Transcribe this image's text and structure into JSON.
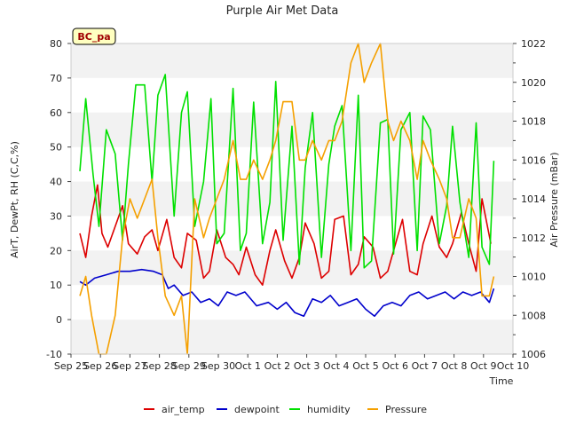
{
  "chart_data": {
    "type": "line",
    "title": "Purple Air Met Data",
    "badge": "BC_pa",
    "xlabel": "Time",
    "ylabel_left": "AirT, DewPt, RH (C,C,%)",
    "ylabel_right": "Air Pressure (mBar)",
    "x_ticks": [
      "Sep 25",
      "Sep 26",
      "Sep 27",
      "Sep 28",
      "Sep 29",
      "Sep 30",
      "Oct 1",
      "Oct 2",
      "Oct 3",
      "Oct 4",
      "Oct 5",
      "Oct 6",
      "Oct 7",
      "Oct 8",
      "Oct 9",
      "Oct 10"
    ],
    "xlim_days": [
      0,
      15
    ],
    "ylim_left": [
      -10,
      80
    ],
    "y_ticks_left": [
      -10,
      0,
      10,
      20,
      30,
      40,
      50,
      60,
      70,
      80
    ],
    "ylim_right": [
      1006,
      1022
    ],
    "y_ticks_right": [
      1006,
      1008,
      1010,
      1012,
      1014,
      1016,
      1018,
      1020,
      1022
    ],
    "grid": "horizontal bands",
    "legend_position": "bottom",
    "series": [
      {
        "name": "air_temp",
        "color": "#dd0000",
        "axis": "left",
        "x": [
          0.3,
          0.5,
          0.7,
          0.9,
          1.05,
          1.25,
          1.5,
          1.75,
          1.95,
          2.25,
          2.5,
          2.75,
          2.95,
          3.25,
          3.5,
          3.75,
          3.95,
          4.25,
          4.5,
          4.7,
          4.95,
          5.25,
          5.5,
          5.7,
          5.95,
          6.25,
          6.5,
          6.75,
          6.95,
          7.25,
          7.5,
          7.75,
          7.95,
          8.25,
          8.5,
          8.75,
          8.95,
          9.25,
          9.5,
          9.75,
          9.95,
          10.25,
          10.5,
          10.75,
          10.95,
          11.25,
          11.5,
          11.75,
          11.95,
          12.25,
          12.5,
          12.75,
          12.95,
          13.25,
          13.5,
          13.75,
          13.95,
          14.25
        ],
        "y": [
          25,
          18,
          30,
          39,
          25,
          21,
          27,
          33,
          22,
          19,
          24,
          26,
          20,
          29,
          18,
          15,
          25,
          23,
          12,
          14,
          26,
          18,
          16,
          13,
          21,
          13,
          10,
          20,
          26,
          17,
          12,
          18,
          28,
          22,
          12,
          14,
          29,
          30,
          13,
          16,
          24,
          21,
          12,
          14,
          20,
          29,
          14,
          13,
          22,
          30,
          21,
          18,
          22,
          31,
          22,
          14,
          35,
          22
        ]
      },
      {
        "name": "dewpoint",
        "color": "#0000cc",
        "axis": "left",
        "x": [
          0.3,
          0.5,
          0.8,
          1.2,
          1.6,
          2.0,
          2.4,
          2.8,
          3.1,
          3.3,
          3.5,
          3.8,
          4.1,
          4.4,
          4.7,
          5.0,
          5.3,
          5.6,
          5.9,
          6.3,
          6.7,
          7.0,
          7.3,
          7.6,
          7.9,
          8.2,
          8.5,
          8.8,
          9.1,
          9.4,
          9.7,
          10.0,
          10.3,
          10.6,
          10.9,
          11.2,
          11.5,
          11.8,
          12.1,
          12.4,
          12.7,
          13.0,
          13.3,
          13.6,
          13.9,
          14.2,
          14.35
        ],
        "y": [
          11,
          10,
          12,
          13,
          14,
          14,
          14.5,
          14,
          13,
          9,
          10,
          7,
          8,
          5,
          6,
          4,
          8,
          7,
          8,
          4,
          5,
          3,
          5,
          2,
          1,
          6,
          5,
          7,
          4,
          5,
          6,
          3,
          1,
          4,
          5,
          4,
          7,
          8,
          6,
          7,
          8,
          6,
          8,
          7,
          8,
          5,
          9
        ]
      },
      {
        "name": "humidity",
        "color": "#00e000",
        "axis": "left",
        "x": [
          0.3,
          0.5,
          0.75,
          0.95,
          1.2,
          1.5,
          1.75,
          1.95,
          2.2,
          2.5,
          2.75,
          2.95,
          3.2,
          3.5,
          3.75,
          3.95,
          4.2,
          4.5,
          4.75,
          4.95,
          5.2,
          5.5,
          5.75,
          5.95,
          6.2,
          6.5,
          6.75,
          6.95,
          7.2,
          7.5,
          7.75,
          7.95,
          8.2,
          8.5,
          8.75,
          8.95,
          9.2,
          9.5,
          9.75,
          9.95,
          10.2,
          10.5,
          10.75,
          10.95,
          11.2,
          11.5,
          11.75,
          11.95,
          12.2,
          12.5,
          12.75,
          12.95,
          13.2,
          13.5,
          13.75,
          13.95,
          14.2,
          14.35
        ],
        "y": [
          43,
          64,
          42,
          27,
          55,
          48,
          23,
          45,
          68,
          68,
          40,
          65,
          71,
          30,
          60,
          66,
          27,
          40,
          64,
          22,
          25,
          67,
          20,
          25,
          63,
          22,
          34,
          69,
          23,
          56,
          16,
          44,
          60,
          18,
          45,
          56,
          62,
          20,
          65,
          15,
          17,
          57,
          58,
          19,
          55,
          60,
          20,
          59,
          55,
          22,
          33,
          56,
          34,
          18,
          57,
          21,
          16,
          46
        ]
      },
      {
        "name": "Pressure",
        "color": "#f5a000",
        "axis": "right",
        "x": [
          0.3,
          0.5,
          0.7,
          0.95,
          1.2,
          1.5,
          1.75,
          2.0,
          2.25,
          2.5,
          2.75,
          2.95,
          3.2,
          3.5,
          3.75,
          3.95,
          4.2,
          4.5,
          4.7,
          4.95,
          5.2,
          5.5,
          5.75,
          5.95,
          6.2,
          6.5,
          6.75,
          6.95,
          7.2,
          7.5,
          7.75,
          7.95,
          8.2,
          8.5,
          8.75,
          8.95,
          9.2,
          9.5,
          9.75,
          9.95,
          10.2,
          10.5,
          10.75,
          10.95,
          11.2,
          11.5,
          11.75,
          11.95,
          12.2,
          12.5,
          12.75,
          12.95,
          13.2,
          13.5,
          13.75,
          13.95,
          14.2,
          14.35
        ],
        "y": [
          1009,
          1010,
          1008,
          1006,
          1006,
          1008,
          1012,
          1014,
          1013,
          1014,
          1015,
          1012,
          1009,
          1008,
          1009,
          1006,
          1014,
          1012,
          1013,
          1014,
          1015,
          1017,
          1015,
          1015,
          1016,
          1015,
          1016,
          1017,
          1019,
          1019,
          1016,
          1016,
          1017,
          1016,
          1017,
          1017,
          1018,
          1021,
          1022,
          1020,
          1021,
          1022,
          1018,
          1017,
          1018,
          1017,
          1015,
          1017,
          1016,
          1015,
          1014,
          1012,
          1012,
          1014,
          1013,
          1009,
          1009,
          1010
        ]
      }
    ]
  }
}
